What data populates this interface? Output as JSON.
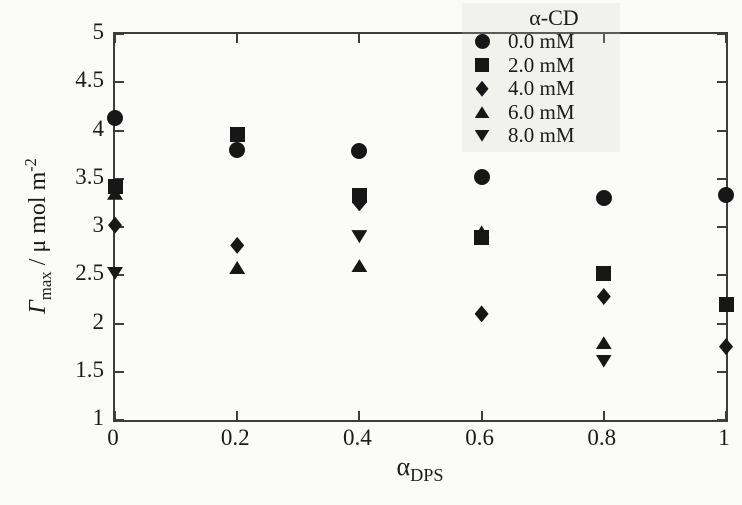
{
  "figure": {
    "background": "#fbfbf9",
    "axis_color": "#3d3d3d",
    "marker_color": "#171717",
    "x_axis": {
      "title_base": "α",
      "title_sub": "DPS",
      "range": [
        0,
        1
      ],
      "ticks": [
        0,
        0.2,
        0.4,
        0.6,
        0.8,
        1
      ],
      "tick_labels": [
        "0",
        "0.2",
        "0.4",
        "0.6",
        "0.8",
        "1"
      ]
    },
    "y_axis": {
      "title_gamma": "Γ",
      "title_gamma_sub": "max",
      "title_mid": " / μ mol m",
      "title_sup": "-2",
      "range": [
        1,
        5
      ],
      "ticks": [
        1,
        1.5,
        2,
        2.5,
        3,
        3.5,
        4,
        4.5,
        5
      ],
      "tick_labels": [
        "1",
        "1.5",
        "2",
        "2.5",
        "3",
        "3.5",
        "4",
        "4.5",
        "5"
      ]
    },
    "legend": {
      "title": "α-CD",
      "items": [
        {
          "marker": "circle",
          "label": "0.0 mM"
        },
        {
          "marker": "square",
          "label": "2.0 mM"
        },
        {
          "marker": "diamond",
          "label": "4.0 mM"
        },
        {
          "marker": "triangle-up",
          "label": "6.0 mM"
        },
        {
          "marker": "triangle-down",
          "label": "8.0 mM"
        }
      ]
    }
  },
  "chart_data": {
    "type": "scatter",
    "title": "",
    "xlabel": "α_DPS",
    "ylabel": "Γ_max / μ mol m^-2",
    "xlim": [
      0,
      1
    ],
    "ylim": [
      1,
      5
    ],
    "grid": false,
    "legend_position": "top-right",
    "legend_title": "α-CD",
    "series": [
      {
        "name": "0.0 mM",
        "marker": "circle",
        "points": [
          [
            0,
            4.13
          ],
          [
            0.2,
            3.8
          ],
          [
            0.4,
            3.79
          ],
          [
            0.6,
            3.52
          ],
          [
            0.8,
            3.3
          ],
          [
            1,
            3.33
          ]
        ]
      },
      {
        "name": "2.0 mM",
        "marker": "square",
        "points": [
          [
            0,
            3.42
          ],
          [
            0.2,
            3.96
          ],
          [
            0.4,
            3.33
          ],
          [
            0.6,
            2.89
          ],
          [
            0.8,
            2.52
          ],
          [
            1,
            2.2
          ]
        ]
      },
      {
        "name": "4.0 mM",
        "marker": "diamond",
        "points": [
          [
            0,
            3.02
          ],
          [
            0.2,
            2.81
          ],
          [
            0.4,
            3.25
          ],
          [
            0.6,
            2.1
          ],
          [
            0.8,
            2.28
          ],
          [
            1,
            1.76
          ]
        ]
      },
      {
        "name": "6.0 mM",
        "marker": "triangle-up",
        "points": [
          [
            0,
            3.35
          ],
          [
            0.2,
            2.58
          ],
          [
            0.4,
            2.6
          ],
          [
            0.6,
            2.95
          ],
          [
            0.8,
            1.8
          ]
        ]
      },
      {
        "name": "8.0 mM",
        "marker": "triangle-down",
        "points": [
          [
            0,
            2.52
          ],
          [
            0.4,
            2.9
          ],
          [
            0.8,
            1.61
          ]
        ]
      }
    ],
    "note": "Points at (0.4,3.25) diamond and (0.6,2.95) triangle-up are partially occluded behind squares; triangle series have no visible markers at some x values."
  }
}
